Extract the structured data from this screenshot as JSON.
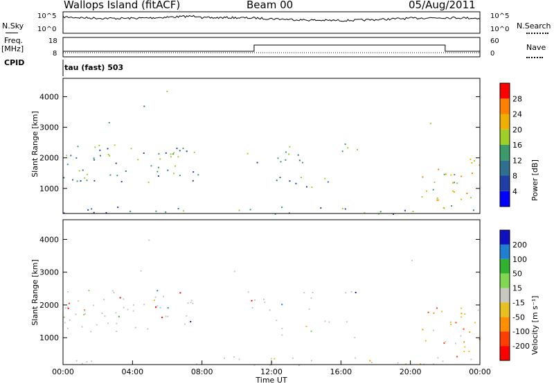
{
  "header": {
    "station": "Wallops Island (fitACF)",
    "beam": "Beam 00",
    "date": "05/Aug/2011"
  },
  "side_labels": {
    "nsky": "N.Sky",
    "nsearch": "N.Search",
    "freq_line1": "Freq.",
    "freq_line2": "[MHz]",
    "nave": "Nave",
    "cpid": "CPID",
    "cpid_value": "tau (fast) 503"
  },
  "noise_axis": {
    "left_top": "10^5",
    "left_bottom": "10^0",
    "right_top": "10^5",
    "right_bottom": "10^0"
  },
  "freq_axis": {
    "left_top": "18",
    "left_bottom": "8",
    "right_top": "60",
    "right_bottom": "0"
  },
  "colors": {
    "power": [
      "#0000ff",
      "#1f3fa6",
      "#2f6f8f",
      "#3a9a6a",
      "#9fd02a",
      "#f0b000",
      "#ff7f00",
      "#ff0000"
    ],
    "velocity": [
      "#1010c0",
      "#1f7fd0",
      "#2fb02f",
      "#7fd84f",
      "#c8c8c0",
      "#e8c020",
      "#ff8f00",
      "#ff3f00",
      "#ff0000"
    ]
  },
  "chart_data": [
    {
      "type": "heatmap",
      "panel": "power",
      "ylabel": "Slant Range [km]",
      "yticks": [
        1000,
        2000,
        3000,
        4000
      ],
      "ylim": [
        180,
        4600
      ],
      "xlim": [
        0,
        24
      ],
      "colorbar_label": "Power [dB]",
      "colorbar_ticks": [
        "4",
        "8",
        "12",
        "16",
        "20",
        "24",
        "28"
      ]
    },
    {
      "type": "heatmap",
      "panel": "velocity",
      "ylabel": "Slant Range [km]",
      "yticks": [
        1000,
        2000,
        3000,
        4000
      ],
      "ylim": [
        180,
        4600
      ],
      "xlim": [
        0,
        24
      ],
      "xlabel": "Time UT",
      "xticks": [
        "00:00",
        "04:00",
        "08:00",
        "12:00",
        "16:00",
        "20:00",
        "00:00"
      ],
      "colorbar_label": "Velocity [m s⁻¹]",
      "colorbar_ticks": [
        "200",
        "100",
        "50",
        "15",
        "-15",
        "-50",
        "-100",
        "-200"
      ]
    }
  ]
}
